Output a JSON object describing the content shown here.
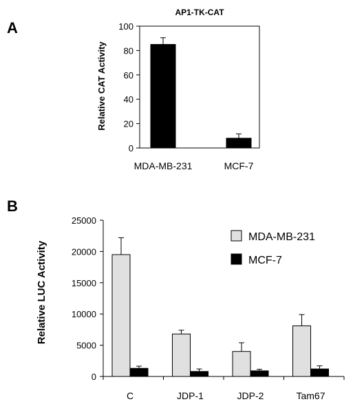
{
  "panels": {
    "a_letter": "A",
    "b_letter": "B"
  },
  "chart_data": [
    {
      "type": "bar",
      "title": "AP1-TK-CAT",
      "ylabel": "Relative CAT Activity",
      "xlabel": "",
      "ylim": [
        0,
        100
      ],
      "yticks": [
        0,
        20,
        40,
        60,
        80,
        100
      ],
      "categories": [
        "MDA-MB-231",
        "MCF-7"
      ],
      "series": [
        {
          "values": [
            85,
            8
          ],
          "errors": [
            5.5,
            3.5
          ],
          "color": "#000000"
        }
      ],
      "grid": false
    },
    {
      "type": "bar",
      "title": "",
      "ylabel": "Relative LUC Activity",
      "xlabel": "",
      "ylim": [
        0,
        25000
      ],
      "yticks": [
        0,
        5000,
        10000,
        15000,
        20000,
        25000
      ],
      "categories": [
        "C",
        "JDP-1",
        "JDP-2",
        "Tam67"
      ],
      "series": [
        {
          "name": "MDA-MB-231",
          "values": [
            19500,
            6800,
            4000,
            8100
          ],
          "errors": [
            2700,
            600,
            1400,
            1800
          ],
          "color": "#e0e0e0"
        },
        {
          "name": "MCF-7",
          "values": [
            1300,
            800,
            900,
            1200
          ],
          "errors": [
            350,
            400,
            250,
            500
          ],
          "color": "#000000"
        }
      ],
      "legend": "top-right",
      "grid": false
    }
  ]
}
